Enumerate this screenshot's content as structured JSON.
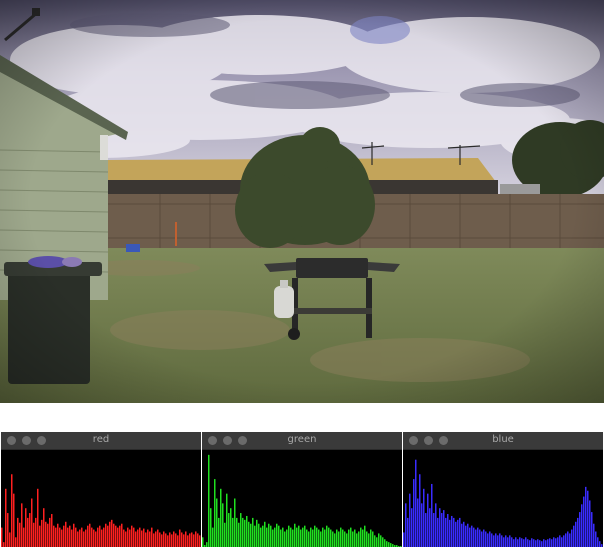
{
  "photo": {
    "scene_objects": [
      "sky",
      "clouds",
      "house",
      "wheelie-bin",
      "wooden-fence",
      "neighbour-roof",
      "bush",
      "tree",
      "bbq-grill",
      "gas-bottle",
      "lawn",
      "tv-antenna"
    ]
  },
  "histograms": [
    {
      "title": "red",
      "color": "#ff2020"
    },
    {
      "title": "green",
      "color": "#20e020"
    },
    {
      "title": "blue",
      "color": "#3a2cff"
    }
  ],
  "chart_data": [
    {
      "type": "bar",
      "title": "red",
      "color": "#ff2020",
      "values": [
        0.2,
        0.05,
        0.6,
        0.35,
        0.15,
        0.75,
        0.55,
        0.1,
        0.3,
        0.25,
        0.45,
        0.2,
        0.4,
        0.3,
        0.35,
        0.5,
        0.25,
        0.3,
        0.6,
        0.22,
        0.28,
        0.4,
        0.26,
        0.24,
        0.3,
        0.34,
        0.22,
        0.2,
        0.24,
        0.2,
        0.18,
        0.22,
        0.26,
        0.2,
        0.22,
        0.18,
        0.24,
        0.2,
        0.16,
        0.18,
        0.2,
        0.16,
        0.18,
        0.22,
        0.24,
        0.2,
        0.18,
        0.16,
        0.2,
        0.22,
        0.18,
        0.2,
        0.24,
        0.22,
        0.26,
        0.28,
        0.24,
        0.22,
        0.2,
        0.22,
        0.24,
        0.18,
        0.16,
        0.2,
        0.18,
        0.22,
        0.2,
        0.16,
        0.18,
        0.2,
        0.17,
        0.19,
        0.15,
        0.18,
        0.16,
        0.2,
        0.14,
        0.16,
        0.18,
        0.15,
        0.13,
        0.16,
        0.14,
        0.12,
        0.15,
        0.13,
        0.16,
        0.14,
        0.12,
        0.18,
        0.15,
        0.13,
        0.16,
        0.12,
        0.14,
        0.15,
        0.13,
        0.16,
        0.14,
        0.12
      ]
    },
    {
      "type": "bar",
      "title": "green",
      "color": "#20e020",
      "values": [
        0.1,
        0.02,
        0.05,
        0.95,
        0.4,
        0.2,
        0.7,
        0.5,
        0.3,
        0.6,
        0.45,
        0.25,
        0.55,
        0.35,
        0.4,
        0.3,
        0.5,
        0.3,
        0.25,
        0.35,
        0.3,
        0.28,
        0.32,
        0.26,
        0.24,
        0.3,
        0.22,
        0.28,
        0.24,
        0.2,
        0.22,
        0.26,
        0.2,
        0.24,
        0.22,
        0.18,
        0.2,
        0.24,
        0.22,
        0.18,
        0.2,
        0.16,
        0.18,
        0.22,
        0.2,
        0.18,
        0.24,
        0.2,
        0.22,
        0.18,
        0.2,
        0.22,
        0.18,
        0.16,
        0.2,
        0.18,
        0.22,
        0.2,
        0.18,
        0.16,
        0.2,
        0.18,
        0.22,
        0.2,
        0.18,
        0.16,
        0.14,
        0.18,
        0.16,
        0.2,
        0.18,
        0.16,
        0.14,
        0.18,
        0.2,
        0.16,
        0.18,
        0.14,
        0.16,
        0.2,
        0.18,
        0.22,
        0.16,
        0.14,
        0.18,
        0.16,
        0.12,
        0.1,
        0.14,
        0.12,
        0.1,
        0.08,
        0.06,
        0.05,
        0.04,
        0.03,
        0.02,
        0.02,
        0.01,
        0.01
      ]
    },
    {
      "type": "bar",
      "title": "blue",
      "color": "#3a2cff",
      "values": [
        0.15,
        0.45,
        0.3,
        0.55,
        0.4,
        0.7,
        0.9,
        0.5,
        0.75,
        0.45,
        0.6,
        0.35,
        0.55,
        0.4,
        0.65,
        0.35,
        0.45,
        0.3,
        0.4,
        0.35,
        0.38,
        0.3,
        0.34,
        0.28,
        0.32,
        0.3,
        0.26,
        0.28,
        0.3,
        0.24,
        0.26,
        0.22,
        0.24,
        0.2,
        0.22,
        0.2,
        0.18,
        0.2,
        0.18,
        0.16,
        0.18,
        0.16,
        0.14,
        0.16,
        0.14,
        0.12,
        0.14,
        0.12,
        0.14,
        0.12,
        0.1,
        0.12,
        0.1,
        0.12,
        0.1,
        0.08,
        0.1,
        0.08,
        0.1,
        0.09,
        0.08,
        0.1,
        0.08,
        0.07,
        0.09,
        0.08,
        0.07,
        0.08,
        0.07,
        0.06,
        0.08,
        0.07,
        0.08,
        0.09,
        0.08,
        0.1,
        0.09,
        0.1,
        0.12,
        0.1,
        0.12,
        0.14,
        0.16,
        0.14,
        0.18,
        0.22,
        0.26,
        0.3,
        0.36,
        0.44,
        0.52,
        0.62,
        0.58,
        0.48,
        0.36,
        0.24,
        0.16,
        0.1,
        0.06,
        0.03
      ]
    }
  ]
}
